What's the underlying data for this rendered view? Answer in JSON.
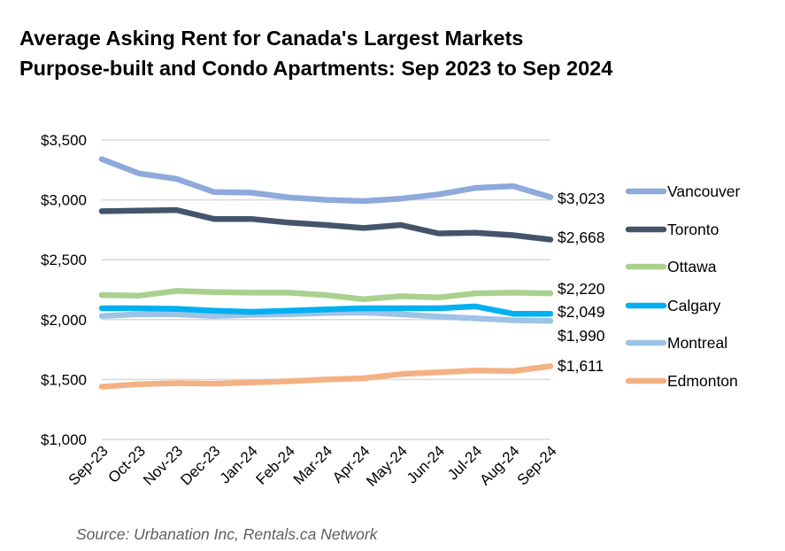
{
  "chart_data": {
    "type": "line",
    "title": "Average Asking Rent for Canada's Largest Markets",
    "subtitle": "Purpose-built and Condo Apartments: Sep 2023 to Sep 2024",
    "xlabel": "",
    "ylabel": "",
    "ylim": [
      1000,
      3500
    ],
    "y_ticks": [
      1000,
      1500,
      2000,
      2500,
      3000,
      3500
    ],
    "y_tick_labels": [
      "$1,000",
      "$1,500",
      "$2,000",
      "$2,500",
      "$3,000",
      "$3,500"
    ],
    "grid": true,
    "legend_position": "right",
    "categories": [
      "Sep-23",
      "Oct-23",
      "Nov-23",
      "Dec-23",
      "Jan-24",
      "Feb-24",
      "Mar-24",
      "Apr-24",
      "May-24",
      "Jun-24",
      "Jul-24",
      "Aug-24",
      "Sep-24"
    ],
    "series": [
      {
        "name": "Vancouver",
        "color": "#8EA9DB",
        "end_label": "$3,023",
        "values": [
          3340,
          3220,
          3175,
          3065,
          3060,
          3020,
          3000,
          2990,
          3010,
          3045,
          3100,
          3115,
          3023
        ]
      },
      {
        "name": "Toronto",
        "color": "#44546A",
        "end_label": "$2,668",
        "values": [
          2905,
          2910,
          2915,
          2840,
          2840,
          2810,
          2790,
          2765,
          2790,
          2720,
          2725,
          2705,
          2668
        ]
      },
      {
        "name": "Ottawa",
        "color": "#A9D18E",
        "end_label": "$2,220",
        "values": [
          2205,
          2200,
          2240,
          2230,
          2225,
          2225,
          2205,
          2170,
          2195,
          2185,
          2220,
          2225,
          2220
        ]
      },
      {
        "name": "Calgary",
        "color": "#00B0F0",
        "end_label": "$2,049",
        "values": [
          2095,
          2095,
          2090,
          2075,
          2065,
          2075,
          2085,
          2095,
          2095,
          2095,
          2110,
          2049,
          2049
        ]
      },
      {
        "name": "Montreal",
        "color": "#9DC3E6",
        "end_label": "$1,990",
        "values": [
          2030,
          2045,
          2045,
          2030,
          2040,
          2045,
          2055,
          2060,
          2045,
          2025,
          2010,
          1995,
          1990
        ]
      },
      {
        "name": "Edmonton",
        "color": "#F4B183",
        "end_label": "$1,611",
        "values": [
          1440,
          1460,
          1470,
          1465,
          1475,
          1485,
          1500,
          1510,
          1545,
          1560,
          1575,
          1570,
          1611
        ]
      }
    ]
  },
  "source": "Source: Urbanation Inc, Rentals.ca Network"
}
